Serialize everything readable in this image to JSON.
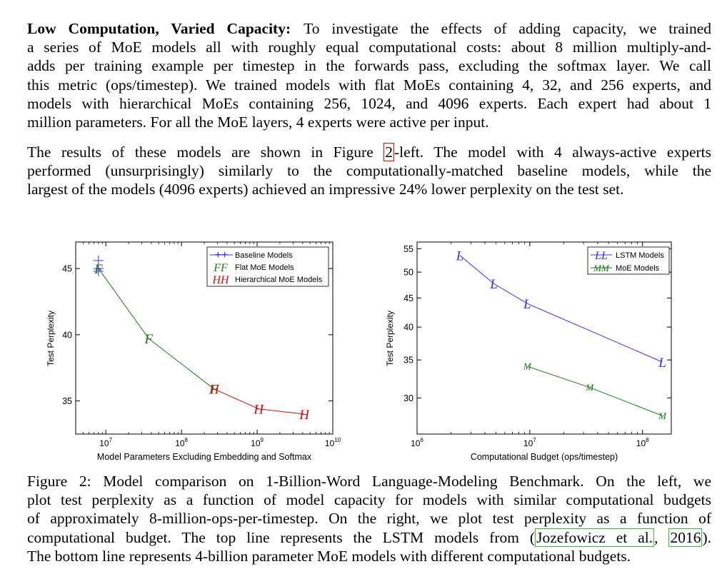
{
  "paragraph1": {
    "runin": "Low Computation, Varied Capacity:",
    "lines": [
      "To investigate the effects of adding capacity, we trained",
      "a series of MoE models all with roughly equal computational costs: about 8 million multiply-and-",
      "adds per training example per timestep in the forwards pass, excluding the softmax layer. We call",
      "this metric (ops/timestep). We trained models with flat MoEs containing 4, 32, and 256 experts, and",
      "models with hierarchical MoEs containing 256, 1024, and 4096 experts. Each expert had about 1",
      "million parameters. For all the MoE layers, 4 experts were active per input."
    ]
  },
  "paragraph2": {
    "line1_before": "The results of these models are shown in Figure",
    "fig_ref": "2",
    "line1_after": "-left. The model with 4 always-active experts",
    "line2": "performed (unsurprisingly) similarly to the computationally-matched baseline models, while the",
    "line3": "largest of the models (4096 experts) achieved an impressive 24% lower perplexity on the test set."
  },
  "caption": {
    "line1": "Figure 2: Model comparison on 1-Billion-Word Language-Modeling Benchmark. On the left, we",
    "line2": "plot test perplexity as a function of model capacity for models with similar computational budgets",
    "line3": "of approximately 8-million-ops-per-timestep. On the right, we plot test perplexity as a function of",
    "line4_before": "computational budget. The top line represents the LSTM models from (",
    "cite_author": "Jozefowicz et al.",
    "cite_sep": ",",
    "cite_year": "2016",
    "line4_after": ").",
    "line5": "The bottom line represents 4-billion parameter MoE models with different computational budgets."
  },
  "chart_data": [
    {
      "type": "line",
      "xscale": "log",
      "xlabel": "Model Parameters Excluding Embedding and Softmax",
      "ylabel": "Test Perplexity",
      "xlim": [
        4000000,
        10000000000
      ],
      "ylim": [
        32.5,
        47.0
      ],
      "xticks": [
        {
          "value": 10000000,
          "base": "10",
          "exp": "7"
        },
        {
          "value": 100000000,
          "base": "10",
          "exp": "8"
        },
        {
          "value": 1000000000,
          "base": "10",
          "exp": "9"
        },
        {
          "value": 10000000000,
          "base": "10",
          "exp": "10"
        }
      ],
      "yticks": [
        {
          "value": 35,
          "label": "35"
        },
        {
          "value": 40,
          "label": "40"
        },
        {
          "value": 45,
          "label": "45"
        }
      ],
      "legend_position": "top-right",
      "legend": [
        {
          "marker": "++",
          "label": "Baseline Models",
          "color": "#3333ff"
        },
        {
          "marker": "FF",
          "label": "Flat MoE Models",
          "color": "#1a7a1a"
        },
        {
          "marker": "HH",
          "label": "Hierarchical MoE Models",
          "color": "#cc1111"
        }
      ],
      "series": [
        {
          "name": "Baseline Models",
          "marker": "+",
          "color": "#3333ff",
          "line": false,
          "x": [
            8000000,
            8000000,
            8000000
          ],
          "y": [
            45.6,
            45.0,
            44.8
          ]
        },
        {
          "name": "Flat MoE Models",
          "marker": "F",
          "color": "#1a7a1a",
          "line": true,
          "x": [
            8000000,
            37000000,
            270000000
          ],
          "y": [
            45.0,
            39.7,
            35.9
          ]
        },
        {
          "name": "Hierarchical MoE Models",
          "marker": "H",
          "color": "#cc1111",
          "line": true,
          "x": [
            270000000,
            1050000000,
            4200000000
          ],
          "y": [
            35.9,
            34.4,
            34.0
          ]
        }
      ]
    },
    {
      "type": "line",
      "xscale": "log",
      "yscale": "log",
      "xlabel": "Computational Budget (ops/timestep)",
      "ylabel": "Test Perplexity",
      "xlim": [
        1000000,
        180000000
      ],
      "ylim": [
        25.9,
        56.5
      ],
      "xticks": [
        {
          "value": 1000000,
          "base": "10",
          "exp": "6"
        },
        {
          "value": 10000000,
          "base": "10",
          "exp": "7"
        },
        {
          "value": 100000000,
          "base": "10",
          "exp": "8"
        }
      ],
      "yticks": [
        {
          "value": 30,
          "label": "30"
        },
        {
          "value": 35,
          "label": "35"
        },
        {
          "value": 40,
          "label": "40"
        },
        {
          "value": 45,
          "label": "45"
        },
        {
          "value": 50,
          "label": "50"
        },
        {
          "value": 55,
          "label": "55"
        }
      ],
      "legend_position": "top-right",
      "legend": [
        {
          "marker": "LL",
          "label": "LSTM Models",
          "color": "#3333ff"
        },
        {
          "marker": "MM",
          "label": "MoE Models",
          "color": "#1a7a1a"
        }
      ],
      "series": [
        {
          "name": "LSTM Models",
          "marker": "L",
          "color": "#3333ff",
          "line": true,
          "x": [
            2400000,
            4800000,
            9500000,
            150000000
          ],
          "y": [
            53.5,
            47.7,
            44.0,
            34.7
          ]
        },
        {
          "name": "MoE Models",
          "marker": "M",
          "color": "#1a7a1a",
          "line": true,
          "x": [
            9500000,
            34000000,
            150000000
          ],
          "y": [
            34.1,
            31.3,
            27.9
          ]
        }
      ]
    }
  ]
}
